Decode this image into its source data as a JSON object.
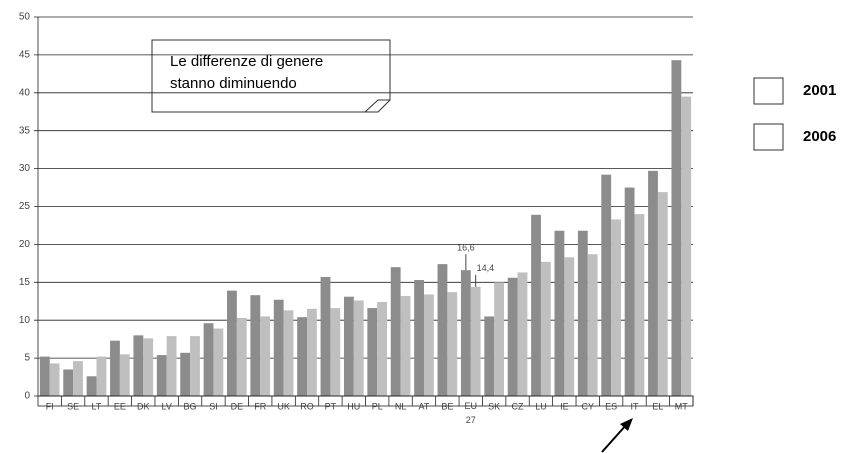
{
  "chart_data": {
    "type": "bar",
    "annotation": [
      "Le differenze di genere",
      "stanno diminuendo"
    ],
    "categories": [
      "FI",
      "SE",
      "LT",
      "EE",
      "DK",
      "LV",
      "BG",
      "SI",
      "DE",
      "FR",
      "UK",
      "RO",
      "PT",
      "HU",
      "PL",
      "NL",
      "AT",
      "BE",
      "EU 27",
      "SK",
      "CZ",
      "LU",
      "IE",
      "CY",
      "ES",
      "IT",
      "EL",
      "MT"
    ],
    "series": [
      {
        "name": "2001",
        "color": "#8c8c8c",
        "values": [
          5.2,
          3.5,
          2.6,
          7.3,
          8.0,
          5.4,
          5.7,
          9.6,
          13.9,
          13.3,
          12.7,
          10.4,
          15.7,
          13.1,
          11.6,
          17.0,
          15.3,
          17.4,
          16.6,
          10.5,
          15.6,
          23.9,
          21.8,
          21.8,
          29.2,
          27.5,
          29.7,
          44.3
        ],
        "value_labels": [
          null,
          null,
          null,
          null,
          null,
          null,
          null,
          null,
          null,
          null,
          null,
          null,
          null,
          null,
          null,
          null,
          null,
          null,
          "16,6",
          null,
          null,
          null,
          null,
          null,
          null,
          null,
          null,
          null
        ]
      },
      {
        "name": "2006",
        "color": "#bfbfbf",
        "values": [
          4.3,
          4.6,
          5.2,
          5.5,
          7.6,
          7.9,
          7.9,
          8.9,
          10.3,
          10.5,
          11.3,
          11.5,
          11.6,
          12.6,
          12.4,
          13.2,
          13.4,
          13.7,
          14.4,
          15.0,
          16.3,
          17.7,
          18.3,
          18.7,
          23.3,
          24.0,
          26.9,
          39.5
        ],
        "value_labels": [
          null,
          null,
          null,
          null,
          null,
          null,
          null,
          null,
          null,
          null,
          null,
          null,
          null,
          null,
          null,
          null,
          null,
          null,
          "14,4",
          null,
          null,
          null,
          null,
          null,
          null,
          null,
          null,
          null
        ]
      }
    ],
    "ylim": [
      0,
      50
    ],
    "yticks": [
      0,
      5,
      10,
      15,
      20,
      25,
      30,
      35,
      40,
      45,
      50
    ],
    "grid": true,
    "legend": "right"
  }
}
